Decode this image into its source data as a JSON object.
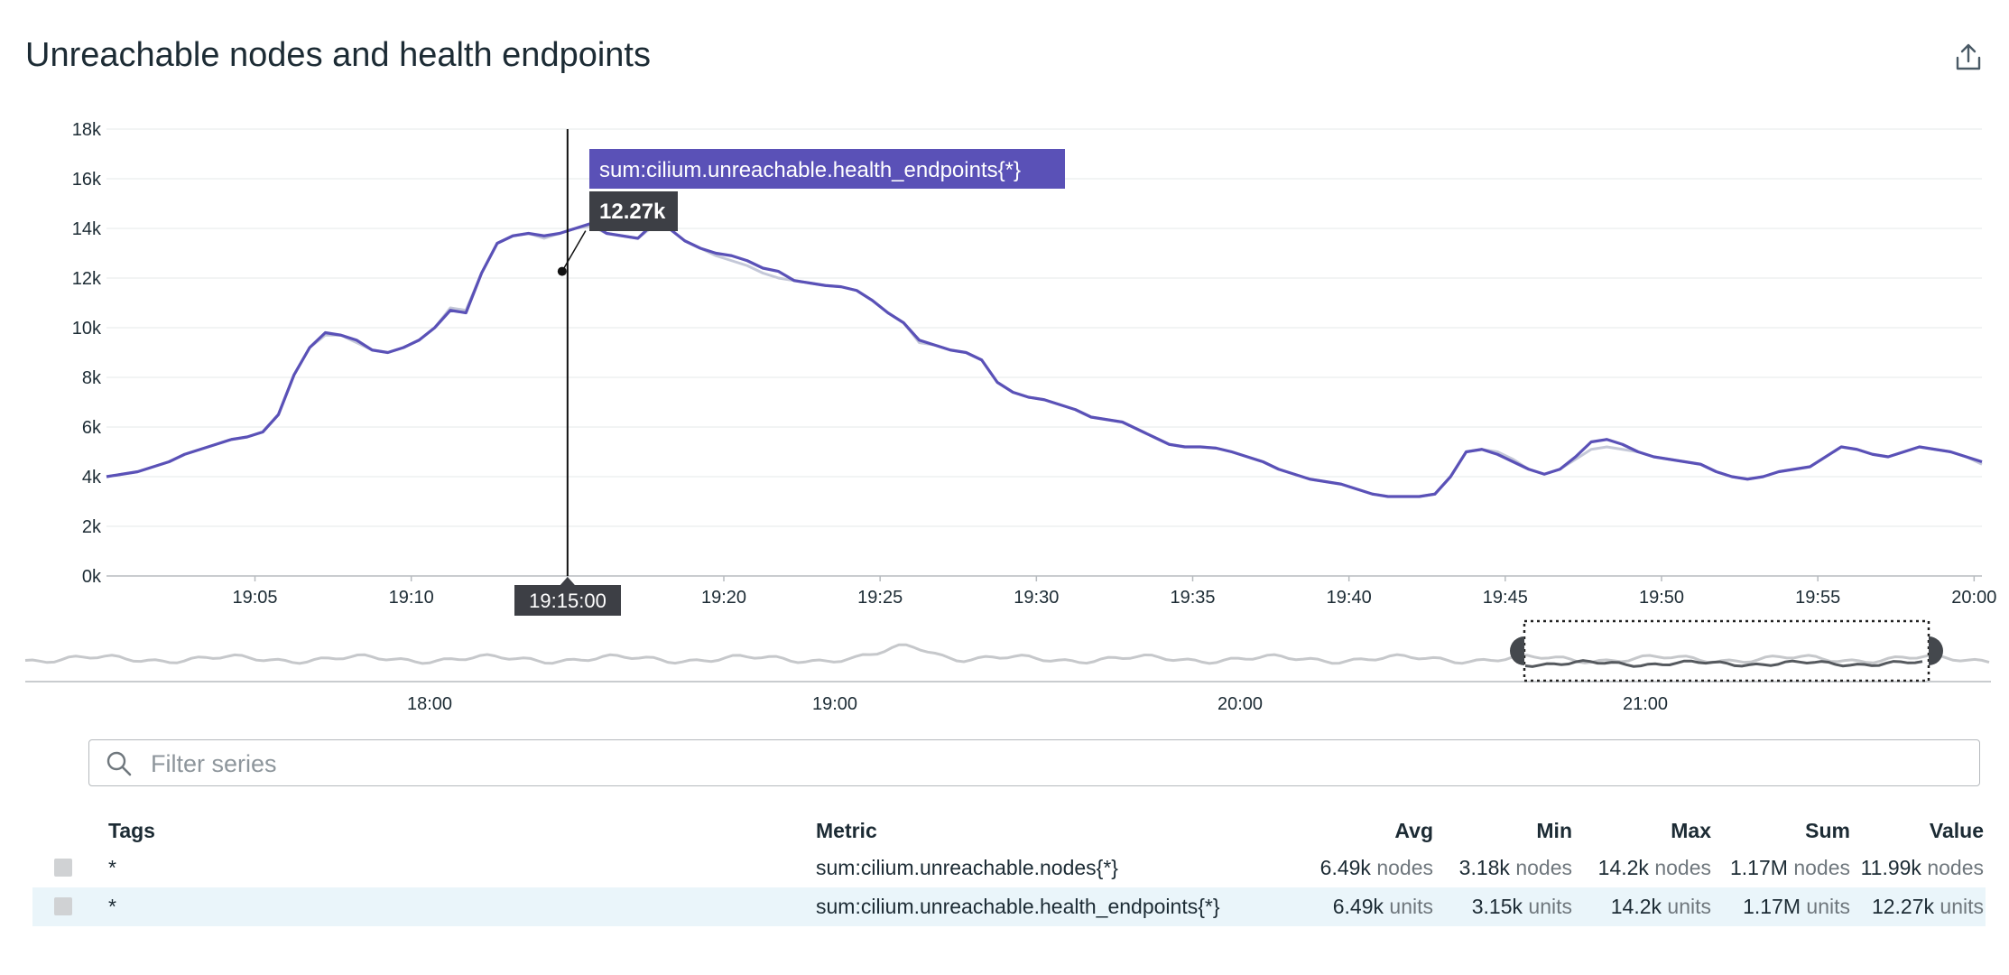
{
  "widget": {
    "title": "Unreachable nodes and health endpoints",
    "export_icon": "share-export-icon"
  },
  "chart_data": {
    "type": "line",
    "title": "Unreachable nodes and health endpoints",
    "xlabel": "",
    "ylabel": "",
    "y_ticks": [
      "0k",
      "2k",
      "4k",
      "6k",
      "8k",
      "10k",
      "12k",
      "14k",
      "16k",
      "18k"
    ],
    "ylim": [
      0,
      18000
    ],
    "x_ticks": [
      "19:05",
      "19:10",
      "19:15",
      "19:20",
      "19:25",
      "19:30",
      "19:35",
      "19:40",
      "19:45",
      "19:50",
      "19:55",
      "20:00"
    ],
    "x_range": [
      "19:00:15",
      "20:00:15"
    ],
    "grid": true,
    "x_minutes": [
      0,
      0.5,
      1,
      1.5,
      2,
      2.5,
      3,
      3.5,
      4,
      4.5,
      5,
      5.5,
      6,
      6.5,
      7,
      7.5,
      8,
      8.5,
      9,
      9.5,
      10,
      10.5,
      11,
      11.5,
      12,
      12.5,
      13,
      13.5,
      14,
      14.5,
      15,
      15.5,
      16,
      16.5,
      17,
      17.5,
      18,
      18.5,
      19,
      19.5,
      20,
      20.5,
      21,
      21.5,
      22,
      22.5,
      23,
      23.5,
      24,
      24.5,
      25,
      25.5,
      26,
      26.5,
      27,
      27.5,
      28,
      28.5,
      29,
      29.5,
      30,
      30.5,
      31,
      31.5,
      32,
      32.5,
      33,
      33.5,
      34,
      34.5,
      35,
      35.5,
      36,
      36.5,
      37,
      37.5,
      38,
      38.5,
      39,
      39.5,
      40,
      40.5,
      41,
      41.5,
      42,
      42.5,
      43,
      43.5,
      44,
      44.5,
      45,
      45.5,
      46,
      46.5,
      47,
      47.5,
      48,
      48.5,
      49,
      49.5,
      50,
      50.5,
      51,
      51.5,
      52,
      52.5,
      53,
      53.5,
      54,
      54.5,
      55,
      55.5,
      56,
      56.5,
      57,
      57.5,
      58,
      58.5,
      59,
      59.5,
      60
    ],
    "series": [
      {
        "name": "sum:cilium.unreachable.health_endpoints{*}",
        "color": "#5a51b7",
        "values": [
          4000,
          4100,
          4200,
          4400,
          4600,
          4900,
          5100,
          5300,
          5500,
          5600,
          5800,
          6500,
          8100,
          9200,
          9800,
          9700,
          9500,
          9100,
          9000,
          9200,
          9500,
          10000,
          10700,
          10600,
          12200,
          13400,
          13700,
          13800,
          13700,
          13800,
          14000,
          14200,
          13800,
          13700,
          13600,
          14200,
          14000,
          13500,
          13200,
          13000,
          12900,
          12700,
          12400,
          12270,
          11900,
          11800,
          11700,
          11650,
          11500,
          11100,
          10600,
          10200,
          9500,
          9300,
          9100,
          9000,
          8700,
          7800,
          7400,
          7200,
          7100,
          6900,
          6700,
          6400,
          6300,
          6200,
          5900,
          5600,
          5300,
          5200,
          5200,
          5150,
          5000,
          4800,
          4600,
          4300,
          4100,
          3900,
          3800,
          3700,
          3500,
          3300,
          3200,
          3200,
          3200,
          3300,
          4000,
          5000,
          5100,
          4900,
          4600,
          4300,
          4100,
          4300,
          4800,
          5400,
          5500,
          5300,
          5000,
          4800,
          4700,
          4600,
          4500,
          4200,
          4000,
          3900,
          4000,
          4200,
          4300,
          4400,
          4800,
          5200,
          5100,
          4900,
          4800,
          5000,
          5200,
          5100,
          5000,
          4800,
          4600
        ]
      },
      {
        "name": "sum:cilium.unreachable.nodes{*}",
        "color": "#c4c8d8",
        "values": [
          4000,
          4100,
          4200,
          4400,
          4600,
          4900,
          5100,
          5300,
          5500,
          5600,
          5800,
          6500,
          8100,
          9200,
          9700,
          9700,
          9400,
          9100,
          9000,
          9200,
          9500,
          10000,
          10800,
          10700,
          12200,
          13400,
          13700,
          13800,
          13600,
          13800,
          14000,
          14100,
          13800,
          13700,
          13600,
          14100,
          14000,
          13500,
          13200,
          12900,
          12700,
          12500,
          12200,
          12000,
          11900,
          11800,
          11700,
          11650,
          11500,
          11100,
          10600,
          10200,
          9400,
          9300,
          9100,
          9000,
          8700,
          7800,
          7400,
          7200,
          7100,
          6900,
          6700,
          6400,
          6300,
          6200,
          5900,
          5600,
          5300,
          5200,
          5200,
          5150,
          5000,
          4800,
          4600,
          4300,
          4100,
          3900,
          3800,
          3700,
          3500,
          3300,
          3200,
          3200,
          3200,
          3300,
          4000,
          5000,
          5100,
          5000,
          4700,
          4300,
          4100,
          4300,
          4700,
          5100,
          5200,
          5100,
          5000,
          4800,
          4700,
          4600,
          4500,
          4200,
          4000,
          3900,
          4000,
          4200,
          4300,
          4400,
          4800,
          5200,
          5100,
          4900,
          4800,
          5000,
          5200,
          5100,
          5000,
          4800,
          4500
        ]
      }
    ],
    "tooltip": {
      "series": "sum:cilium.unreachable.health_endpoints{*}",
      "value": "12.27k",
      "time": "19:15:00",
      "x_minute": 14.75,
      "y": 12270
    },
    "overview": {
      "x_ticks": [
        "18:00",
        "19:00",
        "20:00",
        "21:00"
      ],
      "selection": "19:00 – 20:00"
    }
  },
  "filter": {
    "placeholder": "Filter series",
    "value": ""
  },
  "legend": {
    "headers": {
      "tags": "Tags",
      "metric": "Metric",
      "avg": "Avg",
      "min": "Min",
      "max": "Max",
      "sum": "Sum",
      "value": "Value"
    },
    "rows": [
      {
        "tag": "*",
        "metric": "sum:cilium.unreachable.nodes{*}",
        "avg": "6.49k",
        "avg_unit": "nodes",
        "min": "3.18k",
        "min_unit": "nodes",
        "max": "14.2k",
        "max_unit": "nodes",
        "sum": "1.17M",
        "sum_unit": "nodes",
        "value": "11.99k",
        "value_unit": "nodes"
      },
      {
        "tag": "*",
        "metric": "sum:cilium.unreachable.health_endpoints{*}",
        "avg": "6.49k",
        "avg_unit": "units",
        "min": "3.15k",
        "min_unit": "units",
        "max": "14.2k",
        "max_unit": "units",
        "sum": "1.17M",
        "sum_unit": "units",
        "value": "12.27k",
        "value_unit": "units"
      }
    ]
  }
}
